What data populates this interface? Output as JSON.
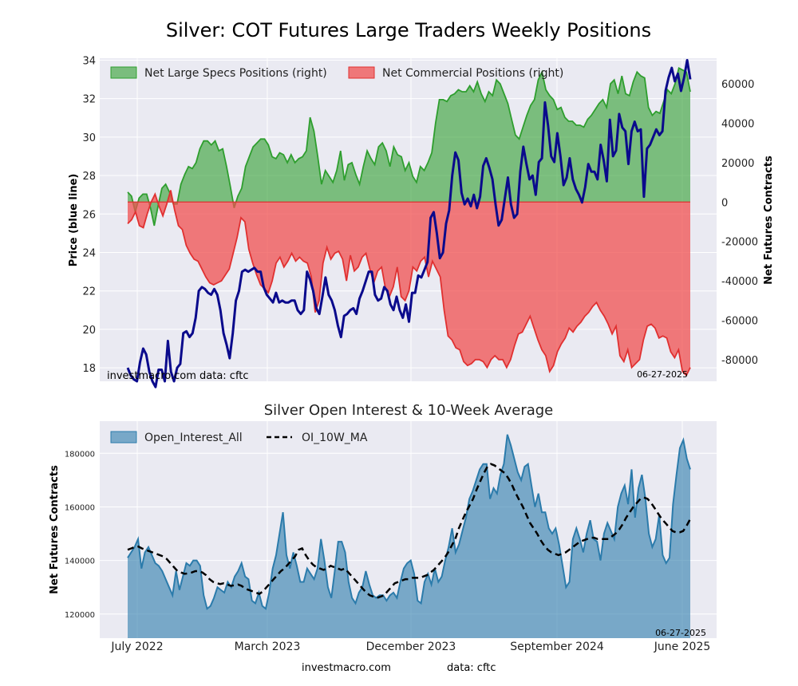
{
  "chart_data": [
    {
      "type": "area",
      "title": "Silver: COT Futures Large Traders Weekly Positions",
      "ylabel": "Price (blue line)",
      "y2label": "Net Futures Contracts",
      "ylim": [
        17.3,
        34.1
      ],
      "y2lim": [
        -91000,
        73000
      ],
      "yticks": [
        18,
        20,
        22,
        24,
        26,
        28,
        30,
        32,
        34
      ],
      "y2ticks": [
        -80000,
        -60000,
        -40000,
        -20000,
        0,
        20000,
        40000,
        60000
      ],
      "y2ticklabels": [
        "-80000",
        "-60000",
        "-40000",
        "-20000",
        "0",
        "20000",
        "40000",
        "60000"
      ],
      "grid": true,
      "legend_position": "top-left",
      "annotation_left": "investmacro.com     data: cftc",
      "annotation_right": "06-27-2025",
      "series": [
        {
          "name": "Net Large Specs Positions (right)",
          "color": "#2e9e2e",
          "axis": "right",
          "values": [
            5000,
            3000,
            -5000,
            2000,
            4000,
            4000,
            -3000,
            -12000,
            -2000,
            7000,
            9000,
            5000,
            -1000,
            -1000,
            9000,
            14000,
            18000,
            17000,
            20000,
            27000,
            31000,
            31000,
            29000,
            31000,
            26000,
            27000,
            18000,
            8000,
            -3000,
            3000,
            7000,
            18000,
            23000,
            28000,
            30000,
            32000,
            32000,
            29000,
            23000,
            22000,
            25000,
            24000,
            20000,
            24000,
            20000,
            22000,
            23000,
            26000,
            43000,
            36000,
            23000,
            9000,
            16000,
            13000,
            10000,
            16000,
            26000,
            11000,
            19000,
            20000,
            14000,
            9000,
            18000,
            26000,
            22000,
            19000,
            28000,
            30000,
            26000,
            18000,
            28000,
            24000,
            23000,
            16000,
            20000,
            13000,
            10000,
            18000,
            16000,
            20000,
            25000,
            40000,
            52000,
            52000,
            51000,
            54000,
            55000,
            57000,
            56000,
            56000,
            59000,
            56000,
            61000,
            55000,
            51000,
            56000,
            54000,
            62000,
            60000,
            55000,
            50000,
            42000,
            34000,
            32000,
            38000,
            44000,
            49000,
            52000,
            62000,
            66000,
            57000,
            54000,
            52000,
            47000,
            48000,
            43000,
            41000,
            41000,
            39000,
            39000,
            38000,
            42000,
            44000,
            47000,
            50000,
            52000,
            48000,
            60000,
            62000,
            55000,
            64000,
            55000,
            54000,
            61000,
            66000,
            64000,
            63000,
            48000,
            44000,
            46000,
            45000,
            51000,
            57000,
            55000,
            60000,
            68000,
            67000,
            66000,
            56000
          ]
        },
        {
          "name": "Net Commercial Positions (right)",
          "color": "#e03030",
          "axis": "right",
          "values": [
            -11000,
            -9000,
            -5000,
            -12000,
            -13000,
            -6000,
            0,
            4000,
            -2000,
            -7000,
            -1000,
            6000,
            -4000,
            -12000,
            -14000,
            -22000,
            -26000,
            -29000,
            -30000,
            -34000,
            -38000,
            -41000,
            -42000,
            -41000,
            -40000,
            -37000,
            -34000,
            -26000,
            -18000,
            -8000,
            -10000,
            -24000,
            -31000,
            -37000,
            -42000,
            -44000,
            -46000,
            -40000,
            -31000,
            -28000,
            -33000,
            -30000,
            -26000,
            -30000,
            -28000,
            -30000,
            -31000,
            -38000,
            -56000,
            -50000,
            -31000,
            -23000,
            -29000,
            -26000,
            -25000,
            -29000,
            -40000,
            -27000,
            -35000,
            -33000,
            -28000,
            -26000,
            -34000,
            -41000,
            -35000,
            -33000,
            -44000,
            -48000,
            -43000,
            -33000,
            -48000,
            -50000,
            -45000,
            -33000,
            -35000,
            -30000,
            -28000,
            -38000,
            -30000,
            -34000,
            -38000,
            -55000,
            -68000,
            -70000,
            -74000,
            -75000,
            -81000,
            -83000,
            -82000,
            -80000,
            -80000,
            -81000,
            -84000,
            -80000,
            -78000,
            -80000,
            -80000,
            -84000,
            -80000,
            -73000,
            -67000,
            -66000,
            -62000,
            -58000,
            -64000,
            -70000,
            -75000,
            -78000,
            -86000,
            -83000,
            -76000,
            -72000,
            -69000,
            -64000,
            -66000,
            -63000,
            -61000,
            -58000,
            -56000,
            -53000,
            -51000,
            -55000,
            -58000,
            -62000,
            -67000,
            -63000,
            -78000,
            -81000,
            -75000,
            -84000,
            -82000,
            -80000,
            -70000,
            -63000,
            -62000,
            -64000,
            -69000,
            -68000,
            -69000,
            -76000,
            -79000,
            -75000,
            -86000,
            -88000,
            -84000
          ]
        },
        {
          "name": "Price (blue line)",
          "color": "#0a0a8c",
          "axis": "left",
          "values": [
            18.0,
            17.6,
            17.4,
            17.3,
            18.3,
            19.0,
            18.7,
            17.8,
            17.3,
            17.0,
            17.9,
            17.9,
            17.3,
            19.4,
            17.8,
            17.3,
            18.0,
            18.2,
            19.8,
            19.9,
            19.6,
            19.8,
            20.6,
            22.0,
            22.2,
            22.1,
            21.9,
            21.8,
            22.1,
            21.8,
            21.0,
            19.8,
            19.2,
            18.5,
            19.8,
            21.5,
            22.0,
            23.0,
            23.1,
            23.0,
            23.1,
            23.2,
            23.0,
            23.0,
            22.2,
            21.8,
            21.6,
            21.4,
            21.9,
            21.4,
            21.5,
            21.4,
            21.4,
            21.5,
            21.5,
            21.0,
            20.8,
            21.0,
            23.0,
            22.6,
            22.0,
            21.1,
            20.8,
            21.7,
            22.7,
            21.8,
            21.5,
            21.0,
            20.2,
            19.6,
            20.7,
            20.8,
            21.0,
            21.1,
            20.8,
            21.6,
            22.0,
            22.5,
            23.0,
            23.0,
            21.8,
            21.5,
            21.6,
            22.2,
            22.0,
            21.3,
            21.0,
            21.7,
            21.0,
            20.6,
            21.3,
            20.4,
            21.9,
            21.9,
            22.8,
            22.7,
            23.1,
            23.5,
            25.8,
            26.1,
            25.0,
            23.7,
            24.0,
            25.5,
            26.2,
            28.0,
            29.2,
            28.8,
            27.1,
            26.5,
            26.8,
            26.4,
            27.0,
            26.3,
            26.9,
            28.5,
            28.9,
            28.4,
            27.8,
            26.5,
            25.4,
            25.7,
            26.8,
            27.9,
            26.5,
            25.8,
            26.0,
            28.2,
            29.5,
            28.6,
            27.8,
            28.0,
            27.0,
            28.7,
            28.9,
            31.8,
            30.6,
            29.0,
            28.7,
            30.2,
            29.0,
            27.5,
            27.9,
            28.9,
            27.8,
            27.3,
            27.0,
            26.6,
            27.4,
            28.6,
            28.2,
            28.2,
            27.8,
            29.6,
            28.8,
            27.7,
            30.9,
            29.0,
            29.3,
            31.2,
            30.5,
            30.3,
            28.6,
            30.3,
            30.8,
            30.3,
            30.4,
            26.9,
            29.4,
            29.6,
            30.0,
            30.4,
            30.1,
            30.3,
            32.4,
            33.1,
            33.6,
            32.9,
            33.3,
            32.4,
            33.1,
            34.0,
            33.0
          ]
        }
      ],
      "xticks_shared": true
    },
    {
      "type": "area",
      "title": "Silver Open Interest & 10-Week Average",
      "ylabel": "Net Futures Contracts",
      "xlabel": "",
      "ylim": [
        111000,
        192000
      ],
      "yticks": [
        120000,
        140000,
        160000,
        180000
      ],
      "yticklabels": [
        "120000",
        "140000",
        "160000",
        "180000"
      ],
      "xticks": [
        "July 2022",
        "March 2023",
        "December 2023",
        "September 2024",
        "June 2025"
      ],
      "grid": true,
      "legend_position": "top-left",
      "annotation_right": "06-27-2025",
      "series": [
        {
          "name": "Open_Interest_All",
          "color": "#2b7bab",
          "values": [
            141000,
            143000,
            145000,
            148000,
            137000,
            143000,
            145000,
            142000,
            139000,
            138000,
            136000,
            133000,
            130000,
            127000,
            136000,
            129000,
            134000,
            139000,
            138000,
            140000,
            140000,
            138000,
            127000,
            122000,
            123000,
            126000,
            130000,
            129000,
            128000,
            132000,
            130000,
            134000,
            136000,
            139000,
            134000,
            133000,
            125000,
            124000,
            128000,
            123000,
            122000,
            128000,
            137000,
            142000,
            150000,
            158000,
            142000,
            137000,
            143000,
            138000,
            132000,
            132000,
            137000,
            135000,
            133000,
            137000,
            148000,
            140000,
            130000,
            126000,
            136000,
            147000,
            147000,
            143000,
            132000,
            126000,
            124000,
            128000,
            130000,
            136000,
            131000,
            127000,
            126000,
            127000,
            127000,
            125000,
            127000,
            128000,
            126000,
            132000,
            137000,
            139000,
            140000,
            135000,
            125000,
            124000,
            132000,
            135000,
            131000,
            137000,
            132000,
            134000,
            140000,
            145000,
            152000,
            143000,
            146000,
            151000,
            156000,
            163000,
            166000,
            170000,
            174000,
            176000,
            176000,
            163000,
            167000,
            165000,
            172000,
            176000,
            187000,
            183000,
            178000,
            173000,
            170000,
            175000,
            176000,
            168000,
            160000,
            165000,
            158000,
            158000,
            152000,
            150000,
            152000,
            146000,
            138000,
            130000,
            132000,
            148000,
            152000,
            148000,
            143000,
            150000,
            155000,
            148000,
            147000,
            140000,
            150000,
            154000,
            151000,
            148000,
            160000,
            165000,
            168000,
            161000,
            174000,
            156000,
            167000,
            172000,
            163000,
            150000,
            145000,
            148000,
            157000,
            142000,
            139000,
            141000,
            161000,
            172000,
            182000,
            185000,
            178000,
            174000
          ],
          "y_floor": 111000
        },
        {
          "name": "OI_10W_MA",
          "color": "#000000",
          "style": "dashed",
          "values": [
            144000,
            144500,
            145000,
            145200,
            144500,
            144000,
            143500,
            143000,
            142500,
            142000,
            141500,
            140500,
            139000,
            137500,
            136000,
            135500,
            135000,
            135200,
            135500,
            136000,
            136000,
            135500,
            134500,
            133000,
            132000,
            131500,
            131200,
            131500,
            131000,
            130500,
            130800,
            131000,
            130500,
            129500,
            129000,
            128500,
            128000,
            127500,
            128500,
            130000,
            131500,
            133000,
            134500,
            136000,
            137000,
            138500,
            140000,
            141500,
            144000,
            144500,
            142000,
            140000,
            138500,
            137500,
            137000,
            136500,
            137000,
            138000,
            137500,
            137000,
            136500,
            137000,
            135500,
            134000,
            132500,
            131000,
            129500,
            128000,
            127000,
            126500,
            126000,
            126500,
            127000,
            128500,
            130000,
            131500,
            132000,
            132500,
            133000,
            133000,
            133500,
            133500,
            133500,
            134000,
            134500,
            135500,
            136500,
            138000,
            139500,
            141000,
            143000,
            145500,
            148000,
            152000,
            155000,
            158000,
            160500,
            163000,
            166500,
            169500,
            172500,
            175000,
            176000,
            175500,
            174500,
            173500,
            172500,
            170500,
            168000,
            165000,
            162500,
            160000,
            157000,
            154000,
            152000,
            150000,
            147500,
            145500,
            144000,
            143000,
            142500,
            142000,
            142500,
            143000,
            144000,
            145000,
            146000,
            147000,
            147500,
            148000,
            148500,
            148500,
            148000,
            148000,
            148000,
            148000,
            149000,
            150000,
            151500,
            153500,
            156000,
            158000,
            160000,
            161500,
            163000,
            163500,
            163000,
            161500,
            159500,
            157500,
            155500,
            154000,
            152500,
            151000,
            150500,
            150500,
            151000,
            153000,
            155500
          ]
        }
      ],
      "annotation_bottom": "investmacro.com                    data: cftc"
    }
  ]
}
